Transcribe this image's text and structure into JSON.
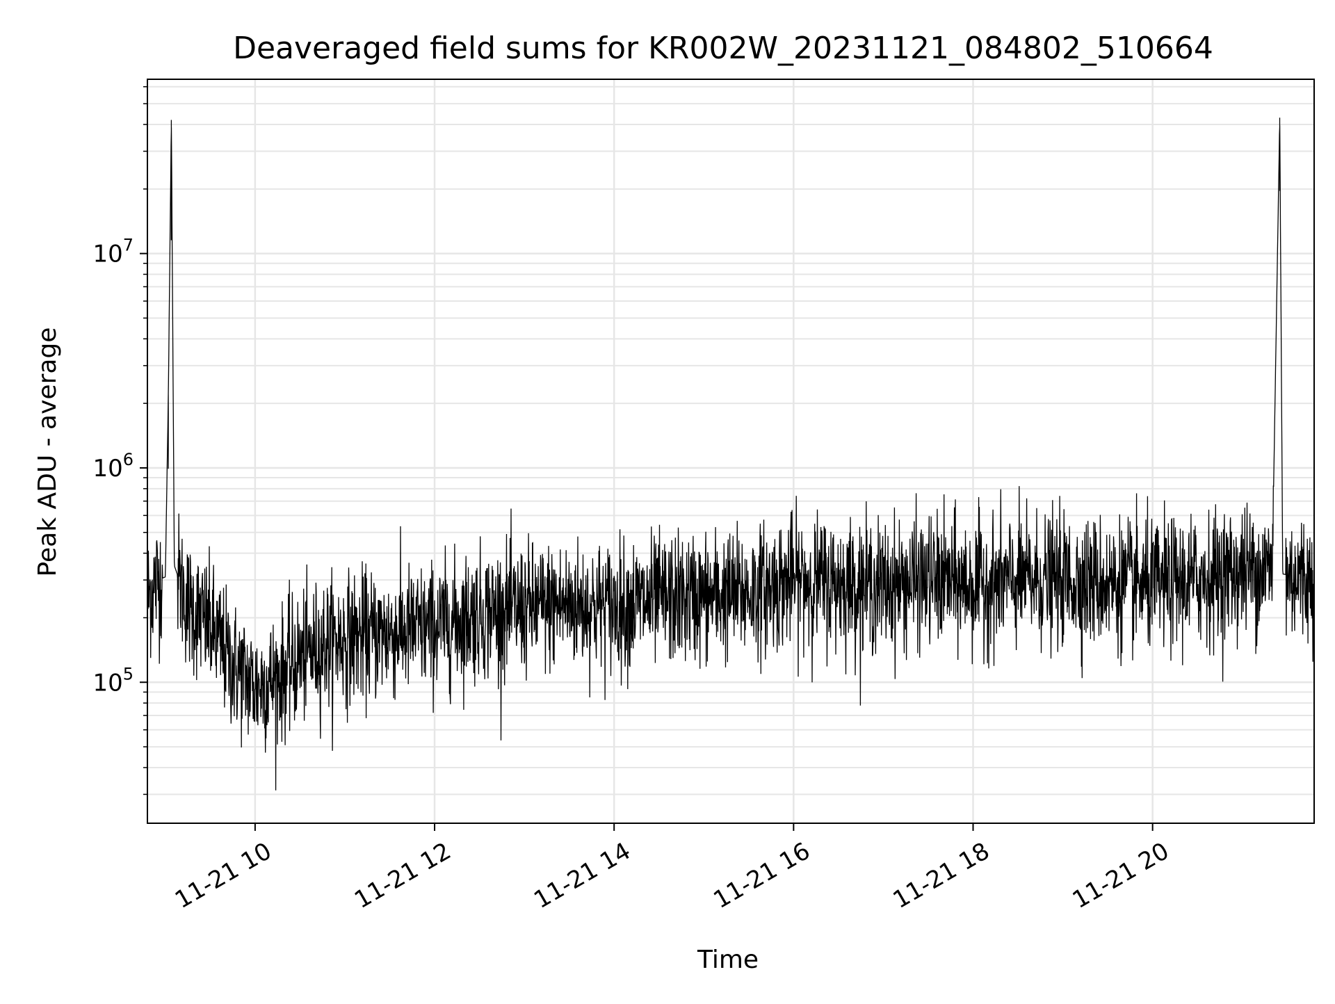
{
  "chart_data": {
    "type": "line",
    "title": "Deaveraged field sums for KR002W_20231121_084802_510664",
    "xlabel": "Time",
    "ylabel": "Peak ADU - average",
    "x_scale": "time",
    "y_scale": "log",
    "grid": true,
    "grid_minor": true,
    "legend": "none",
    "xlim": [
      "2023-11-21 08:48",
      "2023-11-21 21:48"
    ],
    "ylim": [
      22000,
      65000000
    ],
    "x_ticks": [
      {
        "value": "2023-11-21 10:00",
        "label": "11-21 10"
      },
      {
        "value": "2023-11-21 12:00",
        "label": "11-21 12"
      },
      {
        "value": "2023-11-21 14:00",
        "label": "11-21 14"
      },
      {
        "value": "2023-11-21 16:00",
        "label": "11-21 16"
      },
      {
        "value": "2023-11-21 18:00",
        "label": "11-21 18"
      },
      {
        "value": "2023-11-21 20:00",
        "label": "11-21 20"
      }
    ],
    "y_ticks": [
      {
        "value": 100000,
        "base": "10",
        "exp": "5"
      },
      {
        "value": 1000000,
        "base": "10",
        "exp": "6"
      },
      {
        "value": 10000000,
        "base": "10",
        "exp": "7"
      }
    ],
    "series": [
      {
        "color": "#000000",
        "points": [
          [
            "2023-11-21 08:48",
            250000
          ],
          [
            "2023-11-21 08:55",
            300000
          ],
          [
            "2023-11-21 09:00",
            310000
          ],
          [
            "2023-11-21 09:02",
            2200000
          ],
          [
            "2023-11-21 09:04",
            42000000
          ],
          [
            "2023-11-21 09:06",
            350000
          ],
          [
            "2023-11-21 09:15",
            230000
          ],
          [
            "2023-11-21 09:30",
            180000
          ],
          [
            "2023-11-21 09:45",
            120000
          ],
          [
            "2023-11-21 10:00",
            95000
          ],
          [
            "2023-11-21 10:15",
            105000
          ],
          [
            "2023-11-21 10:30",
            130000
          ],
          [
            "2023-11-21 10:45",
            150000
          ],
          [
            "2023-11-21 11:00",
            160000
          ],
          [
            "2023-11-21 11:30",
            170000
          ],
          [
            "2023-11-21 12:00",
            180000
          ],
          [
            "2023-11-21 12:30",
            210000
          ],
          [
            "2023-11-21 13:00",
            220000
          ],
          [
            "2023-11-21 13:30",
            230000
          ],
          [
            "2023-11-21 14:00",
            225000
          ],
          [
            "2023-11-21 14:30",
            240000
          ],
          [
            "2023-11-21 15:00",
            250000
          ],
          [
            "2023-11-21 15:30",
            260000
          ],
          [
            "2023-11-21 16:00",
            300000
          ],
          [
            "2023-11-21 16:30",
            290000
          ],
          [
            "2023-11-21 17:00",
            280000
          ],
          [
            "2023-11-21 17:30",
            300000
          ],
          [
            "2023-11-21 18:00",
            285000
          ],
          [
            "2023-11-21 18:30",
            295000
          ],
          [
            "2023-11-21 19:00",
            300000
          ],
          [
            "2023-11-21 19:30",
            290000
          ],
          [
            "2023-11-21 20:00",
            280000
          ],
          [
            "2023-11-21 20:30",
            300000
          ],
          [
            "2023-11-21 21:00",
            330000
          ],
          [
            "2023-11-21 21:20",
            340000
          ],
          [
            "2023-11-21 21:25",
            43000000
          ],
          [
            "2023-11-21 21:27",
            320000
          ],
          [
            "2023-11-21 21:48",
            300000
          ]
        ]
      }
    ]
  }
}
